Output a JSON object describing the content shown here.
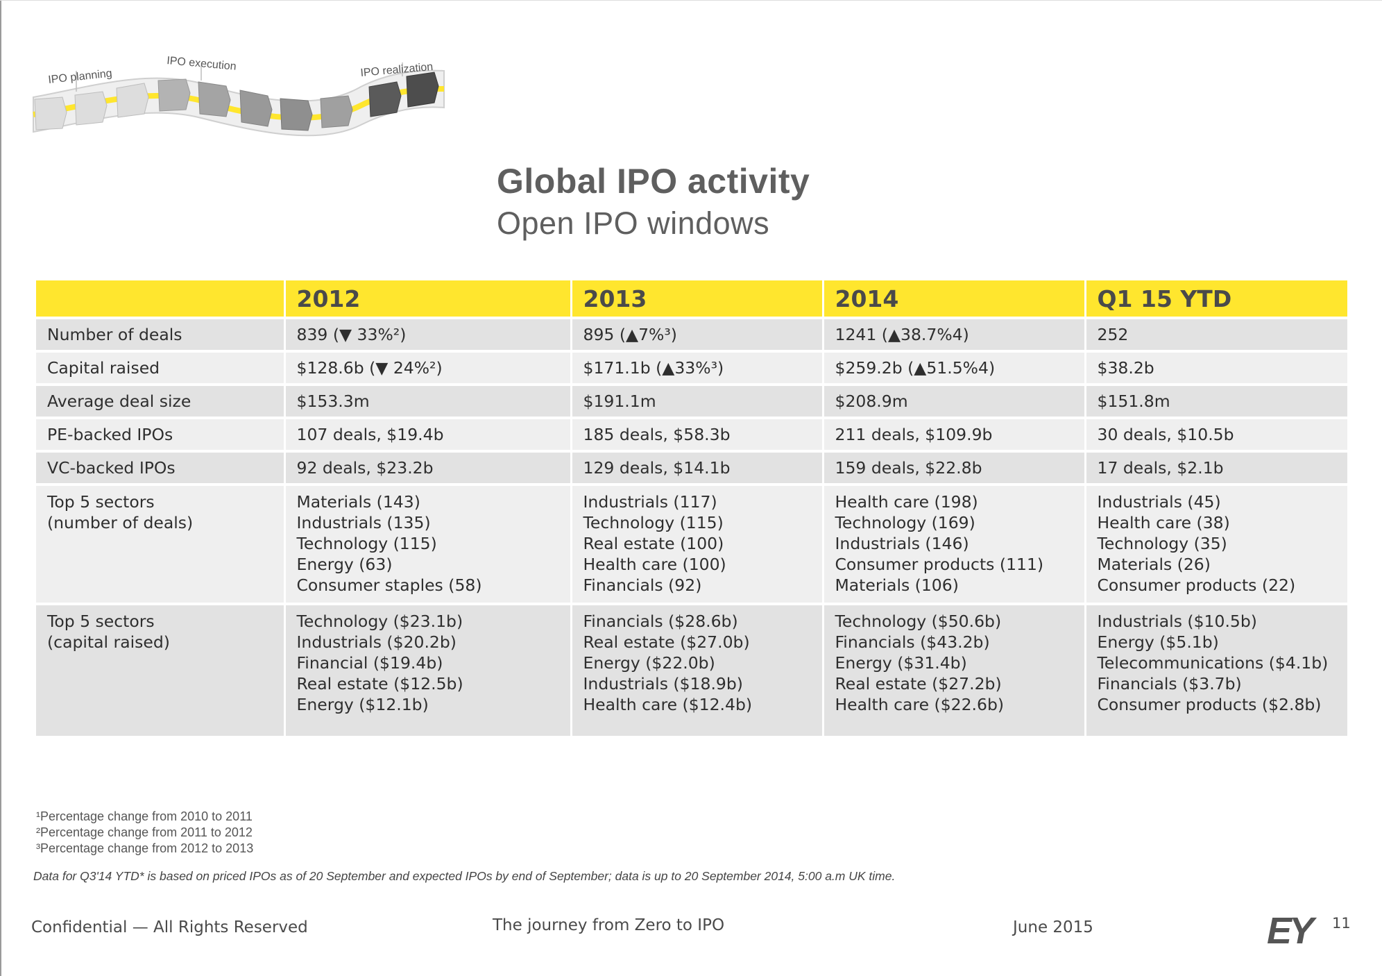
{
  "journey": {
    "labels": [
      "IPO planning",
      "IPO execution",
      "IPO realization"
    ],
    "colors": {
      "light": "#dddddd",
      "mid": "#b3b3b3",
      "dark": "#8a8a8a",
      "darkest": "#4d4d4d",
      "track": "#ffe62e"
    }
  },
  "header": {
    "title": "Global IPO activity",
    "subtitle": "Open IPO windows"
  },
  "table": {
    "columns": [
      "",
      "2012",
      "2013",
      "2014",
      "Q1 15 YTD"
    ],
    "rows": [
      {
        "label": [
          "Number of deals"
        ],
        "cells": [
          [
            "839 (▼ 33%²)"
          ],
          [
            "895 (▲7%³)"
          ],
          [
            "1241 (▲38.7%4)"
          ],
          [
            "252"
          ]
        ]
      },
      {
        "label": [
          "Capital raised"
        ],
        "cells": [
          [
            "$128.6b (▼ 24%²)"
          ],
          [
            "$171.1b (▲33%³)"
          ],
          [
            "$259.2b (▲51.5%4)"
          ],
          [
            "$38.2b"
          ]
        ]
      },
      {
        "label": [
          "Average deal size"
        ],
        "cells": [
          [
            "$153.3m"
          ],
          [
            "$191.1m"
          ],
          [
            "$208.9m"
          ],
          [
            "$151.8m"
          ]
        ]
      },
      {
        "label": [
          "PE-backed IPOs"
        ],
        "cells": [
          [
            "107 deals, $19.4b"
          ],
          [
            "185 deals, $58.3b"
          ],
          [
            "211 deals, $109.9b"
          ],
          [
            "30 deals, $10.5b"
          ]
        ]
      },
      {
        "label": [
          "VC-backed IPOs"
        ],
        "cells": [
          [
            "92 deals, $23.2b"
          ],
          [
            "129 deals, $14.1b"
          ],
          [
            "159 deals, $22.8b"
          ],
          [
            "17 deals, $2.1b"
          ]
        ]
      },
      {
        "label": [
          "Top 5 sectors",
          "(number of deals)"
        ],
        "cells": [
          [
            "Materials (143)",
            "Industrials (135)",
            "Technology (115)",
            "Energy (63)",
            "Consumer staples (58)"
          ],
          [
            "Industrials (117)",
            "Technology (115)",
            "Real estate (100)",
            "Health care (100)",
            "Financials (92)"
          ],
          [
            "Health care (198)",
            "Technology (169)",
            "Industrials (146)",
            "Consumer products (111)",
            "Materials (106)"
          ],
          [
            "Industrials (45)",
            "Health care (38)",
            "Technology (35)",
            "Materials (26)",
            "Consumer products (22)"
          ]
        ]
      },
      {
        "label": [
          "Top 5 sectors",
          "(capital raised)"
        ],
        "cells": [
          [
            "Technology ($23.1b)",
            "Industrials ($20.2b)",
            "Financial ($19.4b)",
            "Real estate ($12.5b)",
            "Energy ($12.1b)"
          ],
          [
            "Financials ($28.6b)",
            "Real estate ($27.0b)",
            "Energy ($22.0b)",
            "Industrials ($18.9b)",
            "Health care ($12.4b)"
          ],
          [
            "Technology ($50.6b)",
            "Financials ($43.2b)",
            "Energy ($31.4b)",
            "Real estate ($27.2b)",
            "Health care ($22.6b)"
          ],
          [
            "Industrials ($10.5b)",
            "Energy ($5.1b)",
            "Telecommunications ($4.1b)",
            "Financials ($3.7b)",
            "Consumer products ($2.8b)"
          ]
        ]
      }
    ]
  },
  "footnotes": [
    "¹Percentage change from 2010 to 2011",
    "²Percentage change from 2011 to 2012",
    "³Percentage change from 2012 to 2013"
  ],
  "note": "Data for Q3'14 YTD* is based on priced IPOs as of 20 September and expected IPOs by end of September; data is up to 20 September 2014, 5:00 a.m UK time.",
  "footer": {
    "confidential": "Confidential — All Rights Reserved",
    "center": "The journey from Zero to IPO",
    "date": "June 2015",
    "logo": "EY",
    "page": "11"
  }
}
